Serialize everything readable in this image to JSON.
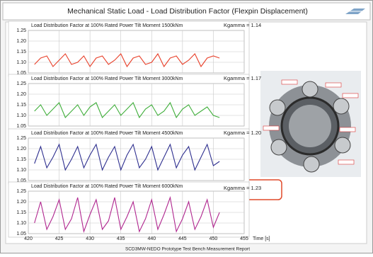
{
  "header": {
    "title": "Mechanical Static Load - Load Distribution Factor (Flexpin Displacement)"
  },
  "footer": "SCD3MW-NEDO Prototype Test Bench Measurement Report",
  "chart_data": [
    {
      "type": "line",
      "title": "Load Distribution Factor at 100% Rated Power Tilt Moment 1500kNm",
      "annotation": "Kgamma = 1.14",
      "color": "#e8402a",
      "x": [
        421,
        422,
        423,
        424,
        425,
        426,
        427,
        428,
        429,
        430,
        431,
        432,
        433,
        434,
        435,
        436,
        437,
        438,
        439,
        440,
        441,
        442,
        443,
        444,
        445,
        446,
        447,
        448,
        449,
        450,
        451
      ],
      "values": [
        1.09,
        1.12,
        1.13,
        1.08,
        1.11,
        1.14,
        1.09,
        1.1,
        1.13,
        1.08,
        1.12,
        1.13,
        1.09,
        1.11,
        1.14,
        1.08,
        1.12,
        1.13,
        1.09,
        1.1,
        1.14,
        1.08,
        1.12,
        1.13,
        1.09,
        1.11,
        1.14,
        1.08,
        1.12,
        1.13,
        1.12
      ],
      "xlim": [
        420,
        455
      ],
      "xticks": [
        420,
        425,
        430,
        435,
        440,
        445,
        450,
        455
      ],
      "xtick_labels": false,
      "ylim": [
        1.05,
        1.25
      ],
      "yticks": [
        1.05,
        {
          "value": 1.1,
          "label": "1.10"
        },
        1.15,
        {
          "value": 1.2,
          "label": "1.20"
        },
        1.25
      ],
      "grid": true
    },
    {
      "type": "line",
      "title": "Load Distribution Factor at 100% Rated Power Tilt Moment 3000kNm",
      "annotation": "Kgamma = 1.17",
      "color": "#3fae3a",
      "x": [
        421,
        422,
        423,
        424,
        425,
        426,
        427,
        428,
        429,
        430,
        431,
        432,
        433,
        434,
        435,
        436,
        437,
        438,
        439,
        440,
        441,
        442,
        443,
        444,
        445,
        446,
        447,
        448,
        449,
        450,
        451
      ],
      "values": [
        1.12,
        1.15,
        1.1,
        1.13,
        1.16,
        1.09,
        1.12,
        1.15,
        1.1,
        1.14,
        1.16,
        1.09,
        1.12,
        1.15,
        1.1,
        1.13,
        1.16,
        1.09,
        1.13,
        1.15,
        1.1,
        1.12,
        1.16,
        1.09,
        1.13,
        1.15,
        1.1,
        1.12,
        1.14,
        1.1,
        1.09
      ],
      "xlim": [
        420,
        455
      ],
      "xticks": [
        420,
        425,
        430,
        435,
        440,
        445,
        450,
        455
      ],
      "xtick_labels": false,
      "ylim": [
        1.05,
        1.25
      ],
      "yticks": [
        1.05,
        {
          "value": 1.1,
          "label": "1.10"
        },
        1.15,
        {
          "value": 1.2,
          "label": "1.20"
        },
        1.25
      ],
      "grid": true
    },
    {
      "type": "line",
      "title": "Load Distribution Factor at 100% Rated Power Tilt Moment 4500kNm",
      "annotation": "Kgamma = 1.20",
      "color": "#2e2f8f",
      "x": [
        421,
        422,
        423,
        424,
        425,
        426,
        427,
        428,
        429,
        430,
        431,
        432,
        433,
        434,
        435,
        436,
        437,
        438,
        439,
        440,
        441,
        442,
        443,
        444,
        445,
        446,
        447,
        448,
        449,
        450,
        451
      ],
      "values": [
        1.13,
        1.21,
        1.11,
        1.16,
        1.22,
        1.1,
        1.15,
        1.21,
        1.11,
        1.17,
        1.22,
        1.1,
        1.16,
        1.21,
        1.1,
        1.17,
        1.22,
        1.11,
        1.15,
        1.21,
        1.1,
        1.16,
        1.22,
        1.11,
        1.17,
        1.21,
        1.1,
        1.16,
        1.22,
        1.12,
        1.14
      ],
      "xlim": [
        420,
        455
      ],
      "xticks": [
        420,
        425,
        430,
        435,
        440,
        445,
        450,
        455
      ],
      "xtick_labels": false,
      "ylim": [
        1.05,
        1.25
      ],
      "yticks": [
        1.05,
        {
          "value": 1.1,
          "label": "1.10"
        },
        1.15,
        {
          "value": 1.2,
          "label": "1.20"
        },
        1.25
      ],
      "grid": true
    },
    {
      "type": "line",
      "title": "Load Distribution Factor at 100% Rated Power Tilt Moment 6000kNm",
      "annotation": "Kgamma = 1.23",
      "color": "#b0278f",
      "x": [
        421,
        422,
        423,
        424,
        425,
        426,
        427,
        428,
        429,
        430,
        431,
        432,
        433,
        434,
        435,
        436,
        437,
        438,
        439,
        440,
        441,
        442,
        443,
        444,
        445,
        446,
        447,
        448,
        449,
        450,
        451
      ],
      "values": [
        1.1,
        1.2,
        1.07,
        1.13,
        1.21,
        1.07,
        1.12,
        1.22,
        1.06,
        1.14,
        1.21,
        1.07,
        1.11,
        1.22,
        1.07,
        1.13,
        1.2,
        1.06,
        1.12,
        1.21,
        1.07,
        1.14,
        1.22,
        1.06,
        1.12,
        1.2,
        1.07,
        1.13,
        1.21,
        1.08,
        1.15
      ],
      "xlim": [
        420,
        455
      ],
      "xticks": [
        420,
        425,
        430,
        435,
        440,
        445,
        450,
        455
      ],
      "xtick_labels": true,
      "xlabel": "Time [s]",
      "ylim": [
        1.05,
        1.25
      ],
      "yticks": [
        1.05,
        {
          "value": 1.1,
          "label": "1.10"
        },
        1.15,
        {
          "value": 1.2,
          "label": "1.20"
        },
        1.25
      ],
      "grid": true
    }
  ]
}
